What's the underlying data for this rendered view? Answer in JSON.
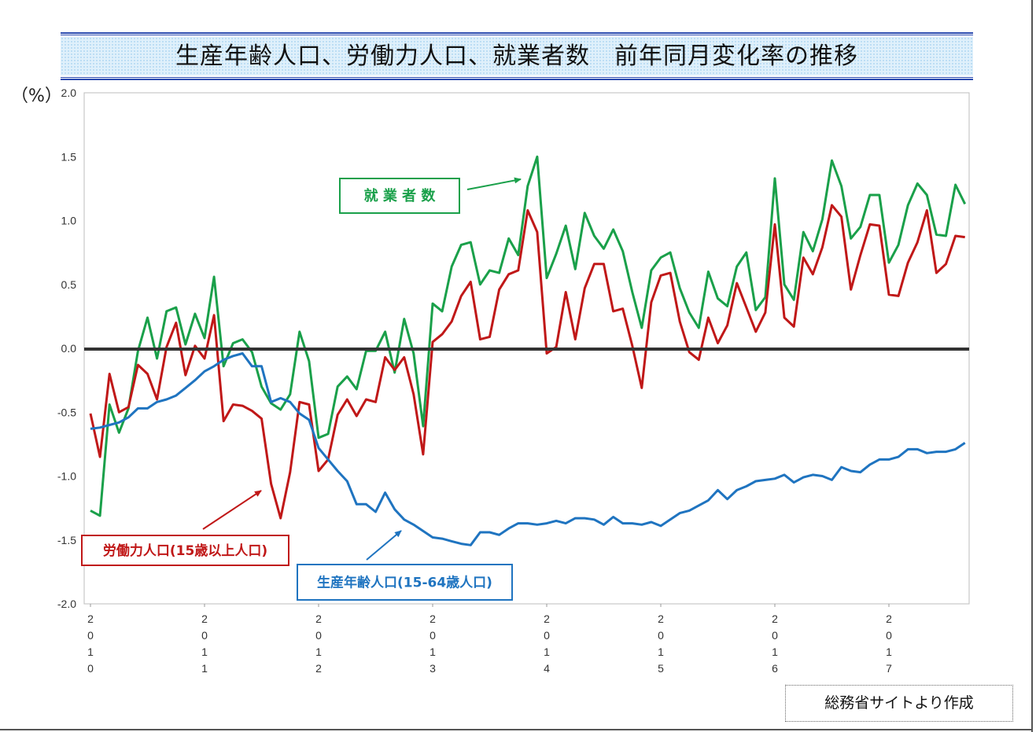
{
  "title": "生産年齢人口、労働力人口、就業者数　前年同月変化率の推移",
  "source_note": "総務省サイトより作成",
  "colors": {
    "employed": "#1aa04a",
    "labor_force": "#c01818",
    "working_age": "#1f74c0",
    "zero_line": "#333333"
  },
  "chart_data": {
    "type": "line",
    "ylabel": "（%）",
    "ylim": [
      -2.0,
      2.0
    ],
    "yticks": [
      "2.0",
      "1.5",
      "1.0",
      "0.5",
      "0.0",
      "-0.5",
      "-1.0",
      "-1.5",
      "-2.0"
    ],
    "x_start": "2010-01",
    "x_year_labels": [
      "2010",
      "2011",
      "2012",
      "2013",
      "2014",
      "2015",
      "2016",
      "2017"
    ],
    "grid": false,
    "series": [
      {
        "name": "就業者数",
        "color": "#1aa04a",
        "values": [
          -1.27,
          -1.31,
          -0.44,
          -0.66,
          -0.47,
          -0.02,
          0.24,
          -0.08,
          0.29,
          0.32,
          0.03,
          0.27,
          0.08,
          0.56,
          -0.14,
          0.04,
          0.07,
          -0.03,
          -0.3,
          -0.43,
          -0.48,
          -0.36,
          0.13,
          -0.1,
          -0.7,
          -0.67,
          -0.3,
          -0.22,
          -0.32,
          -0.02,
          -0.02,
          0.13,
          -0.19,
          0.23,
          -0.04,
          -0.61,
          0.35,
          0.29,
          0.64,
          0.81,
          0.83,
          0.5,
          0.61,
          0.59,
          0.86,
          0.73,
          1.27,
          1.5,
          0.55,
          0.74,
          0.96,
          0.62,
          1.06,
          0.88,
          0.78,
          0.93,
          0.76,
          0.44,
          0.16,
          0.61,
          0.71,
          0.75,
          0.47,
          0.28,
          0.16,
          0.6,
          0.39,
          0.33,
          0.64,
          0.75,
          0.3,
          0.4,
          1.33,
          0.5,
          0.38,
          0.91,
          0.76,
          1.01,
          1.47,
          1.27,
          0.86,
          0.95,
          1.2,
          1.2,
          0.67,
          0.81,
          1.12,
          1.29,
          1.2,
          0.89,
          0.88,
          1.28,
          1.13
        ]
      },
      {
        "name": "労働力人口(15歳以上人口)",
        "color": "#c01818",
        "values": [
          -0.51,
          -0.85,
          -0.2,
          -0.5,
          -0.46,
          -0.13,
          -0.2,
          -0.4,
          0.01,
          0.2,
          -0.21,
          0.02,
          -0.08,
          0.26,
          -0.57,
          -0.44,
          -0.45,
          -0.49,
          -0.55,
          -1.06,
          -1.33,
          -0.97,
          -0.42,
          -0.44,
          -0.96,
          -0.87,
          -0.52,
          -0.4,
          -0.53,
          -0.4,
          -0.42,
          -0.07,
          -0.17,
          -0.07,
          -0.36,
          -0.83,
          0.05,
          0.11,
          0.21,
          0.41,
          0.52,
          0.07,
          0.09,
          0.46,
          0.58,
          0.61,
          1.08,
          0.91,
          -0.04,
          0.01,
          0.44,
          0.07,
          0.47,
          0.66,
          0.66,
          0.29,
          0.31,
          0.02,
          -0.31,
          0.36,
          0.57,
          0.59,
          0.21,
          -0.03,
          -0.09,
          0.24,
          0.04,
          0.18,
          0.51,
          0.32,
          0.13,
          0.28,
          0.97,
          0.24,
          0.17,
          0.71,
          0.58,
          0.79,
          1.12,
          1.03,
          0.46,
          0.73,
          0.97,
          0.96,
          0.42,
          0.41,
          0.67,
          0.83,
          1.08,
          0.59,
          0.66,
          0.88,
          0.87
        ]
      },
      {
        "name": "生産年齢人口(15-64歳人口)",
        "color": "#1f74c0",
        "values": [
          -0.63,
          -0.62,
          -0.6,
          -0.58,
          -0.54,
          -0.47,
          -0.47,
          -0.42,
          -0.4,
          -0.37,
          -0.31,
          -0.25,
          -0.18,
          -0.14,
          -0.09,
          -0.06,
          -0.04,
          -0.14,
          -0.14,
          -0.42,
          -0.39,
          -0.42,
          -0.51,
          -0.56,
          -0.78,
          -0.87,
          -0.96,
          -1.04,
          -1.22,
          -1.22,
          -1.28,
          -1.13,
          -1.26,
          -1.34,
          -1.38,
          -1.43,
          -1.48,
          -1.49,
          -1.51,
          -1.53,
          -1.54,
          -1.44,
          -1.44,
          -1.46,
          -1.41,
          -1.37,
          -1.37,
          -1.38,
          -1.37,
          -1.35,
          -1.37,
          -1.33,
          -1.33,
          -1.34,
          -1.38,
          -1.32,
          -1.37,
          -1.37,
          -1.38,
          -1.36,
          -1.39,
          -1.34,
          -1.29,
          -1.27,
          -1.23,
          -1.19,
          -1.11,
          -1.18,
          -1.11,
          -1.08,
          -1.04,
          -1.03,
          -1.02,
          -0.99,
          -1.05,
          -1.01,
          -0.99,
          -1.0,
          -1.03,
          -0.93,
          -0.96,
          -0.97,
          -0.91,
          -0.87,
          -0.87,
          -0.85,
          -0.79,
          -0.79,
          -0.82,
          -0.81,
          -0.81,
          -0.79,
          -0.74
        ]
      }
    ],
    "annotations": [
      {
        "text": "就 業 者 数",
        "series": "就業者数"
      },
      {
        "text": "労働力人口(15歳以上人口)",
        "series": "労働力人口(15歳以上人口)"
      },
      {
        "text": "生産年齢人口(15-64歳人口)",
        "series": "生産年齢人口(15-64歳人口)"
      }
    ]
  }
}
